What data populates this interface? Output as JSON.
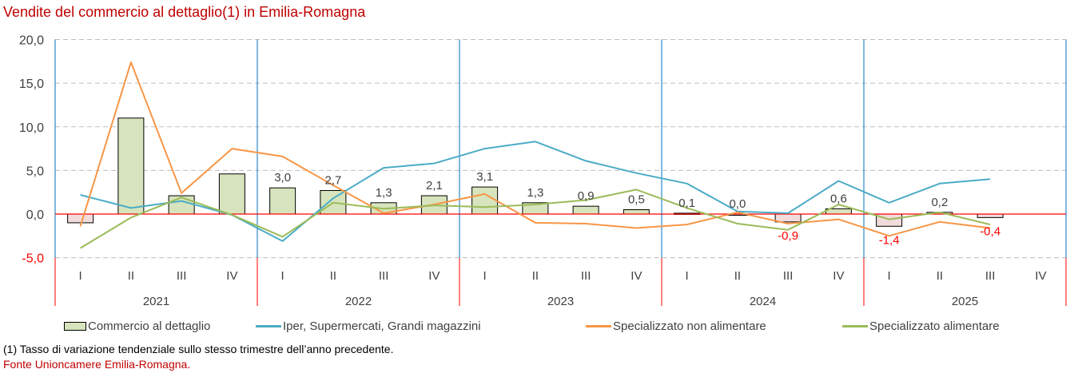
{
  "title": "Vendite del commercio al dettaglio(1) in Emilia-Romagna",
  "footnote": "(1) Tasso di variazione tendenziale sullo stesso trimestre dell’anno precedente.",
  "source": "Fonte Unioncamere Emilia-Romagna.",
  "colors": {
    "bar_positive": "#d7e4bd",
    "bar_negative": "#f2dcdb",
    "bar_border": "#000000",
    "iper": "#4bacc6",
    "non_alimentare": "#f79646",
    "alimentare": "#9bbb59",
    "zero_line": "#ff0000",
    "year_separator_upper": "#0070c0",
    "year_separator_lower": "#ff0000",
    "grid": "#bfbfbf",
    "negative_label": "#ff0000",
    "positive_label": "#404040"
  },
  "chart_data": {
    "type": "bar+line",
    "title": "Vendite del commercio al dettaglio(1) in Emilia-Romagna",
    "xlabel": "",
    "ylabel": "",
    "ylim": [
      -5,
      20
    ],
    "yticks": [
      -5,
      0,
      5,
      10,
      15,
      20
    ],
    "ytick_labels": [
      "-5,0",
      "0,0",
      "5,0",
      "10,0",
      "15,0",
      "20,0"
    ],
    "grid": true,
    "legend_position": "bottom",
    "years": [
      "2021",
      "2022",
      "2023",
      "2024",
      "2025"
    ],
    "quarters": [
      "I",
      "II",
      "III",
      "IV"
    ],
    "categories": [
      "2021-I",
      "2021-II",
      "2021-III",
      "2021-IV",
      "2022-I",
      "2022-II",
      "2022-III",
      "2022-IV",
      "2023-I",
      "2023-II",
      "2023-III",
      "2023-IV",
      "2024-I",
      "2024-II",
      "2024-III",
      "2024-IV",
      "2025-I",
      "2025-II",
      "2025-III",
      "2025-IV"
    ],
    "series": [
      {
        "name": "Commercio al dettaglio",
        "kind": "bar",
        "values": [
          -1.0,
          11.0,
          2.1,
          4.6,
          3.0,
          2.7,
          1.3,
          2.1,
          3.1,
          1.3,
          0.9,
          0.5,
          0.1,
          0.0,
          -0.9,
          0.6,
          -1.4,
          0.2,
          -0.4,
          null
        ],
        "labels": [
          null,
          null,
          null,
          null,
          "3,0",
          "2,7",
          "1,3",
          "2,1",
          "3,1",
          "1,3",
          "0,9",
          "0,5",
          "0,1",
          "0,0",
          "-0,9",
          "0,6",
          "-1,4",
          "0,2",
          "-0,4",
          null
        ]
      },
      {
        "name": "Iper, Supermercati, Grandi magazzini",
        "kind": "line",
        "values": [
          2.2,
          0.7,
          1.5,
          -0.1,
          -3.1,
          1.8,
          5.3,
          5.8,
          7.5,
          8.3,
          6.1,
          4.7,
          3.5,
          0.3,
          0.1,
          3.8,
          1.3,
          3.5,
          4.0,
          null
        ]
      },
      {
        "name": "Specializzato non alimentare",
        "kind": "line",
        "values": [
          -1.4,
          17.4,
          2.4,
          7.5,
          6.6,
          3.3,
          0.1,
          1.1,
          2.3,
          -1.0,
          -1.1,
          -1.6,
          -1.2,
          0.2,
          -1.1,
          -0.6,
          -2.5,
          -0.9,
          -1.6,
          null
        ]
      },
      {
        "name": "Specializzato alimentare",
        "kind": "line",
        "values": [
          -3.9,
          -0.4,
          1.9,
          -0.1,
          -2.6,
          1.3,
          0.6,
          1.0,
          0.8,
          1.1,
          1.6,
          2.8,
          0.7,
          -1.1,
          -1.8,
          1.1,
          -0.6,
          0.2,
          -1.2,
          null
        ]
      }
    ]
  }
}
